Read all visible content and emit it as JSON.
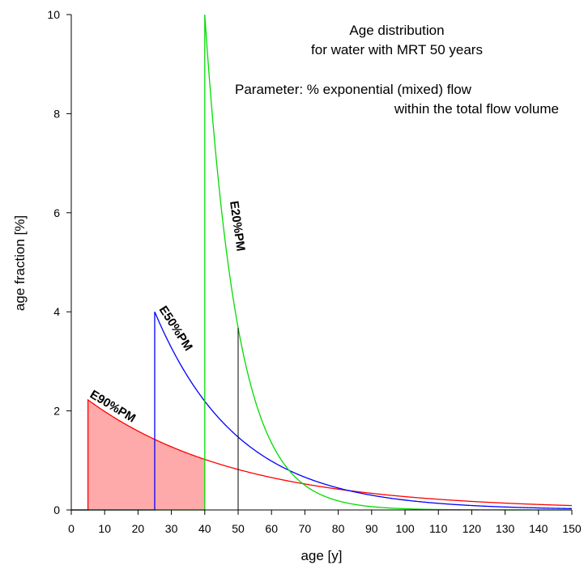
{
  "chart_data": {
    "type": "line",
    "xlabel": "age [y]",
    "ylabel": "age fraction [%]",
    "xlim": [
      0,
      150
    ],
    "ylim": [
      0,
      10
    ],
    "xticks": [
      0,
      10,
      20,
      30,
      40,
      50,
      60,
      70,
      80,
      90,
      100,
      110,
      120,
      130,
      140,
      150
    ],
    "yticks": [
      0,
      2,
      4,
      6,
      8,
      10
    ],
    "grid": false,
    "mrt": 50,
    "annotations": [
      "Age distribution",
      "for water with MRT 50 years",
      "Parameter: % exponential (mixed) flow",
      "within the total flow volume"
    ],
    "series": [
      {
        "name": "E90%PM",
        "color": "#ff0000",
        "fill": "#ffaaaa",
        "exp_fraction": 0.9
      },
      {
        "name": "E50%PM",
        "color": "#0000ff",
        "exp_fraction": 0.5
      },
      {
        "name": "E20%PM",
        "color": "#00dd00",
        "exp_fraction": 0.2
      }
    ],
    "marker_line": {
      "x": 50,
      "color": "#000000"
    }
  }
}
